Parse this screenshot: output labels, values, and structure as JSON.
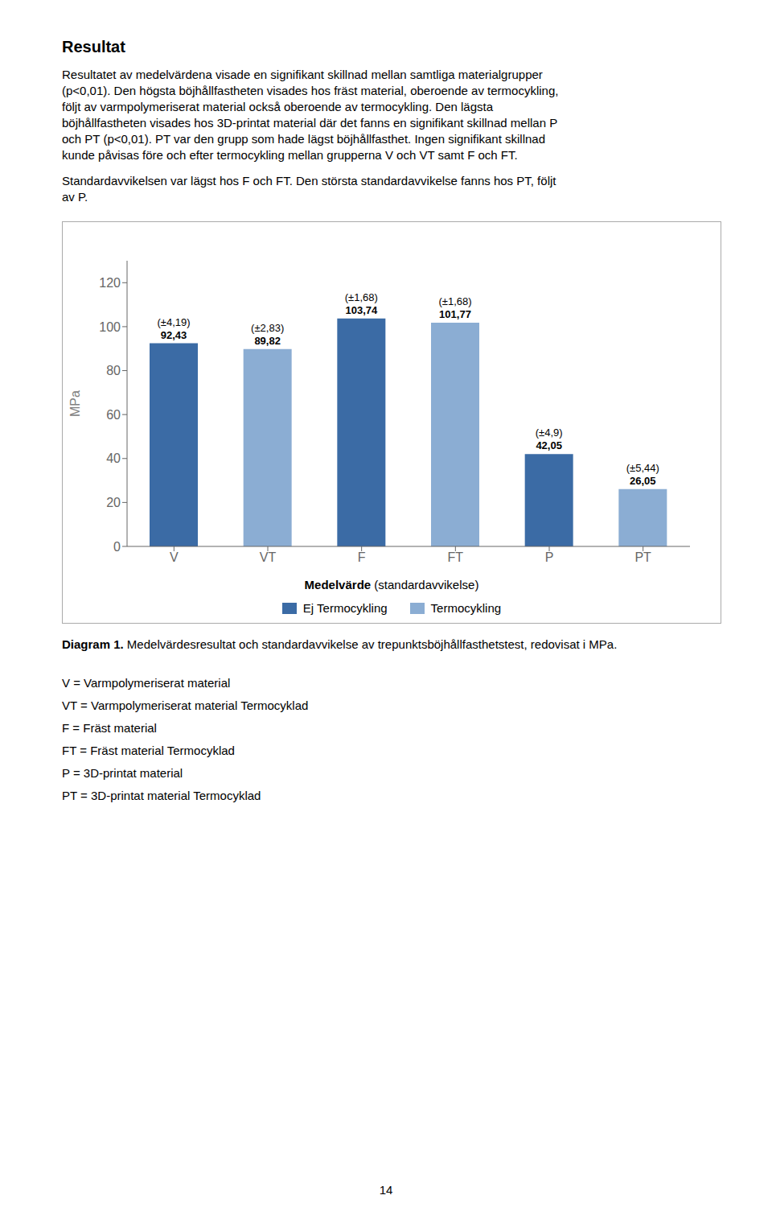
{
  "chart_data": {
    "type": "bar",
    "categories": [
      "V",
      "VT",
      "F",
      "FT",
      "P",
      "PT"
    ],
    "series": [
      {
        "name": "Ej Termocykling",
        "color": "#3B6BA5",
        "values": [
          92.43,
          null,
          103.74,
          null,
          42.05,
          null
        ],
        "value_labels": [
          "92,43",
          null,
          "103,74",
          null,
          "42,05",
          null
        ],
        "std_labels": [
          "(±4,19)",
          null,
          "(±1,68)",
          null,
          "(±4,9)",
          null
        ]
      },
      {
        "name": "Termocykling",
        "color": "#8BADD3",
        "values": [
          null,
          89.82,
          null,
          101.77,
          null,
          26.05
        ],
        "value_labels": [
          null,
          "89,82",
          null,
          "101,77",
          null,
          "26,05"
        ],
        "std_labels": [
          null,
          "(±2,83)",
          null,
          "(±1,68)",
          null,
          "(±5,44)"
        ]
      }
    ],
    "ylabel": "MPa",
    "xlabel": "Medelvärde (standardavvikelse)",
    "ylim": [
      0,
      130
    ],
    "yticks": [
      0,
      20,
      40,
      60,
      80,
      100,
      120
    ],
    "grid": false,
    "legend": "bottom",
    "data_labels": true,
    "annotations": [
      "Resultat",
      "Resultatet av medelvärdena visade en signifikant skillnad mellan samtliga materialgrupper\n(p<0,01). Den högsta böjhållfastheten visades hos fräst material, oberoende av termocykling,\nföljt av varmpolymeriserat material också oberoende av termocykling. Den lägsta\nböjhållfastheten visades hos 3D-printat material där det fanns en signifikant skillnad mellan P\noch PT (p<0,01). PT var den grupp som hade lägst böjhållfasthet. Ingen signifikant skillnad\nkunde påvisas före och efter termocykling mellan grupperna V och VT samt F och FT.",
      "Standardavvikelsen var lägst hos F och FT. Den största standardavvikelse fanns hos PT, följt\nav P.",
      "Diagram 1. Medelvärdesresultat och standardavvikelse av trepunktsböjhållfasthetstest, redovisat i MPa.",
      "V = Varmpolymeriserat material",
      "VT = Varmpolymeriserat material Termocyklad",
      "F = Fräst material",
      "FT = Fräst material Termocyklad",
      "P = 3D-printat material",
      "PT = 3D-printat material Termocyklad",
      "14"
    ]
  }
}
